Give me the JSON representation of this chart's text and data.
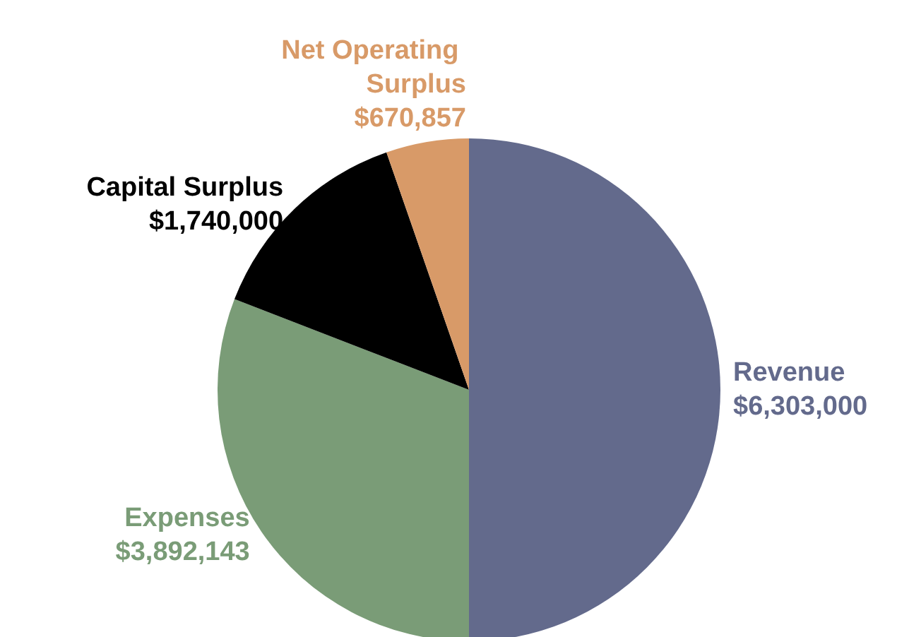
{
  "chart_data": {
    "type": "pie",
    "categories": [
      "Revenue",
      "Expenses",
      "Capital Surplus",
      "Net Operating Surplus"
    ],
    "values": [
      6303000,
      3892143,
      1740000,
      670857
    ],
    "value_labels": [
      "$6,303,000",
      "$3,892,143",
      "$1,740,000",
      "$670,857"
    ],
    "colors": [
      "#636a8c",
      "#7a9c77",
      "#000000",
      "#d89a68"
    ],
    "legend": false
  }
}
